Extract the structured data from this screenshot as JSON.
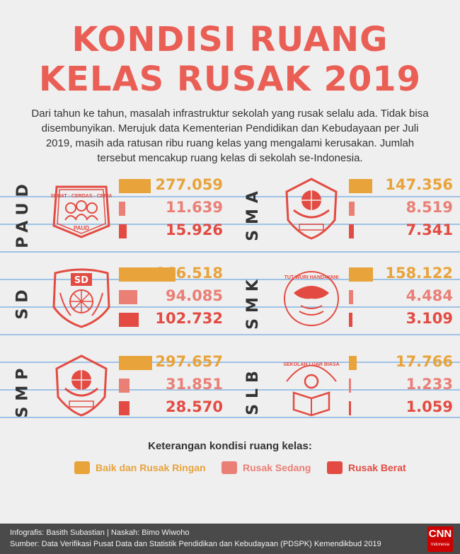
{
  "title_line1": "KONDISI RUANG",
  "title_line2": "KELAS RUSAK 2019",
  "intro": "Dari tahun ke tahun, masalah infrastruktur sekolah yang rusak selalu ada. Tidak bisa disembunyikan. Merujuk data Kementerian Pendidikan dan Kebudayaan per Juli 2019, masih ada ratusan ribu ruang kelas yang mengalami kerusakan. Jumlah tersebut mencakup ruang kelas di sekolah se-Indonesia.",
  "legend": {
    "title": "Keterangan kondisi ruang kelas:",
    "items": [
      "Baik dan Rusak Ringan",
      "Rusak Sedang",
      "Rusak Berat"
    ]
  },
  "colors": {
    "ringan": "#e8a33b",
    "sedang": "#ea7f76",
    "berat": "#e34b42",
    "title": "#ea5f55"
  },
  "logo_text": {
    "paud_top": "SEHAT - CERDAS - CERIA",
    "paud_bottom": "PAUD",
    "sd": "SD",
    "smk_top": "TUT WURI HANDAYANI",
    "slb_top": "SEKOLAH LUAR BIASA"
  },
  "chart_data": {
    "type": "bar",
    "categories": [
      "PAUD",
      "SD",
      "SMP",
      "SMA",
      "SMK",
      "SLB"
    ],
    "series": [
      {
        "name": "Baik dan Rusak Ringan",
        "values": [
          277059,
          866518,
          297657,
          147356,
          158122,
          17766
        ]
      },
      {
        "name": "Rusak Sedang",
        "values": [
          11639,
          94085,
          31851,
          8519,
          4484,
          1233
        ]
      },
      {
        "name": "Rusak Berat",
        "values": [
          15926,
          102732,
          28570,
          7341,
          3109,
          1059
        ]
      }
    ],
    "labels": {
      "PAUD": [
        "277.059",
        "11.639",
        "15.926"
      ],
      "SD": [
        "866.518",
        "94.085",
        "102.732"
      ],
      "SMP": [
        "297.657",
        "31.851",
        "28.570"
      ],
      "SMA": [
        "147.356",
        "8.519",
        "7.341"
      ],
      "SMK": [
        "158.122",
        "4.484",
        "3.109"
      ],
      "SLB": [
        "17.766",
        "1.233",
        "1.059"
      ]
    }
  },
  "footer": {
    "credit": "Infografis: Basith Subastian | Naskah: Bimo Wiwoho",
    "source": "Sumber: Data Verifikasi Pusat Data dan Statistik Pendidikan dan Kebudayaan (PDSPK) Kemendikbud 2019",
    "brand": "CNN",
    "brand_sub": "Indonesia"
  }
}
